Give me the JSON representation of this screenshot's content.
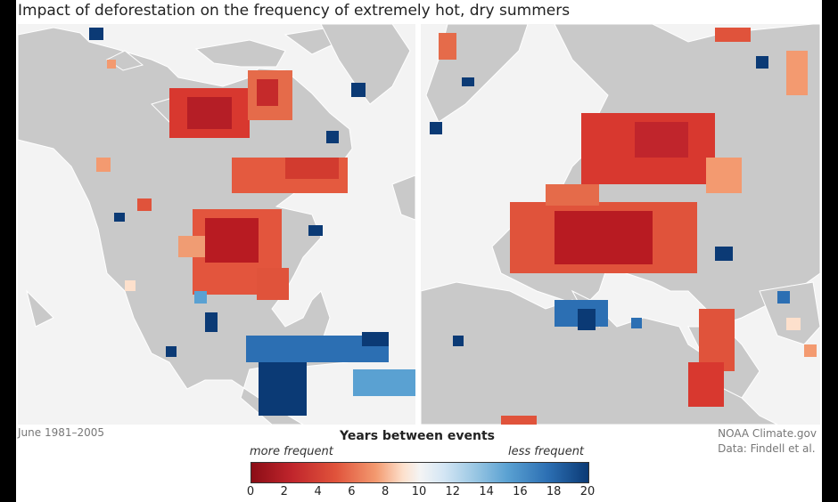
{
  "title": "Impact of deforestation on the frequency of extremely hot, dry summers",
  "period": "June 1981–2005",
  "credit": {
    "line1": "NOAA Climate.gov",
    "line2": "Data: Findell et al."
  },
  "legend": {
    "title": "Years between events",
    "left_label": "more frequent",
    "right_label": "less frequent",
    "ticks": [
      "0",
      "2",
      "4",
      "6",
      "8",
      "10",
      "12",
      "14",
      "16",
      "18",
      "20"
    ]
  },
  "colors": {
    "land": "#c9c9c9",
    "water": "#f3f3f3",
    "border": "#ffffff",
    "scale": [
      "#8b0d16",
      "#c0252c",
      "#e0533b",
      "#f39a70",
      "#fde0cc",
      "#f4f4f4",
      "#d4e6f4",
      "#9cc8e4",
      "#5aa1d2",
      "#2c6fb3",
      "#0b3a75"
    ]
  },
  "panels": [
    {
      "id": "north-america"
    },
    {
      "id": "europe-middle-east"
    }
  ]
}
